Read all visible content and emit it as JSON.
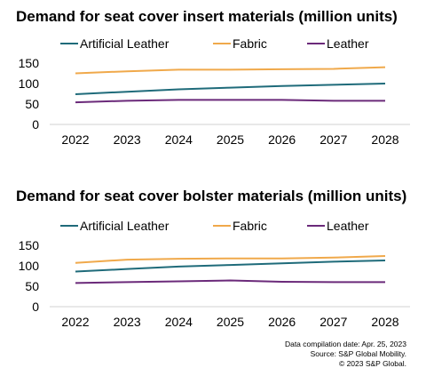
{
  "chart_data": [
    {
      "type": "line",
      "title": "Demand for seat cover insert materials (million units)",
      "xlabel": "",
      "ylabel": "",
      "categories": [
        "2022",
        "2023",
        "2024",
        "2025",
        "2026",
        "2027",
        "2028"
      ],
      "ylim": [
        0,
        150
      ],
      "yticks": [
        0,
        50,
        100,
        150
      ],
      "grid": false,
      "legend": "top",
      "series": [
        {
          "name": "Artificial Leather",
          "color": "#1f6b7a",
          "values": [
            74,
            80,
            86,
            90,
            94,
            97,
            100
          ]
        },
        {
          "name": "Fabric",
          "color": "#f0a94b",
          "values": [
            125,
            130,
            134,
            134,
            135,
            136,
            140
          ]
        },
        {
          "name": "Leather",
          "color": "#6b2a7a",
          "values": [
            54,
            58,
            60,
            60,
            60,
            58,
            58
          ]
        }
      ]
    },
    {
      "type": "line",
      "title": "Demand for seat cover bolster materials (million units)",
      "xlabel": "",
      "ylabel": "",
      "categories": [
        "2022",
        "2023",
        "2024",
        "2025",
        "2026",
        "2027",
        "2028"
      ],
      "ylim": [
        0,
        150
      ],
      "yticks": [
        0,
        50,
        100,
        150
      ],
      "grid": false,
      "legend": "top",
      "series": [
        {
          "name": "Artificial Leather",
          "color": "#1f6b7a",
          "values": [
            86,
            92,
            98,
            102,
            106,
            110,
            113
          ]
        },
        {
          "name": "Fabric",
          "color": "#f0a94b",
          "values": [
            107,
            115,
            117,
            118,
            118,
            120,
            124
          ]
        },
        {
          "name": "Leather",
          "color": "#6b2a7a",
          "values": [
            58,
            60,
            62,
            64,
            61,
            60,
            60
          ]
        }
      ]
    }
  ],
  "footer": {
    "line1": "Data compilation date: Apr. 25, 2023",
    "line2": "Source: S&P Global Mobility.",
    "line3": "© 2023 S&P Global."
  }
}
